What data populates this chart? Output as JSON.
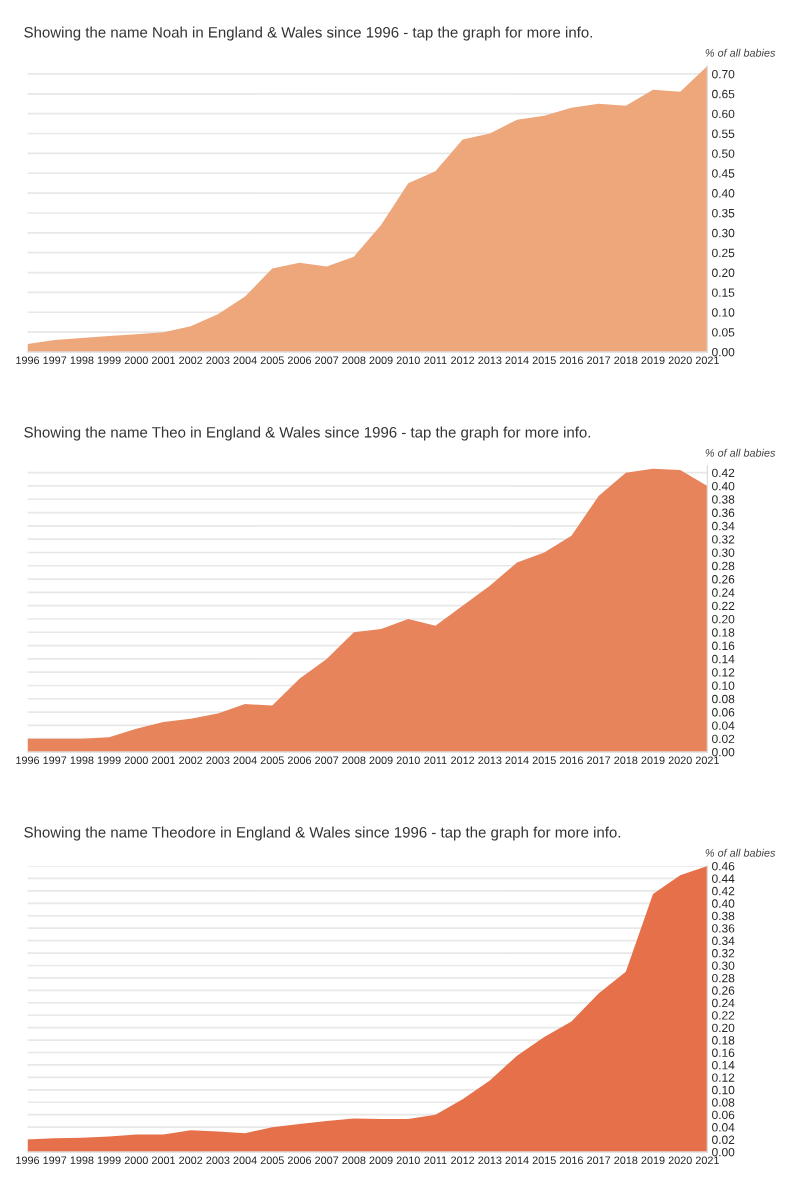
{
  "chart_data": [
    {
      "type": "area",
      "title": "Showing the name Noah in England & Wales since 1996 - tap the graph for more info.",
      "ylabel": "% of all babies",
      "categories": [
        "1996",
        "1997",
        "1998",
        "1999",
        "2000",
        "2001",
        "2002",
        "2003",
        "2004",
        "2005",
        "2006",
        "2007",
        "2008",
        "2009",
        "2010",
        "2011",
        "2012",
        "2013",
        "2014",
        "2015",
        "2016",
        "2017",
        "2018",
        "2019",
        "2020",
        "2021"
      ],
      "series": [
        {
          "color": "#eda77a",
          "values": [
            0.02,
            0.03,
            0.035,
            0.04,
            0.045,
            0.05,
            0.065,
            0.095,
            0.14,
            0.21,
            0.225,
            0.215,
            0.24,
            0.32,
            0.425,
            0.455,
            0.535,
            0.55,
            0.585,
            0.595,
            0.615,
            0.625,
            0.62,
            0.66,
            0.655,
            0.72
          ]
        }
      ],
      "ylim": [
        0,
        0.72
      ],
      "yticks": [
        {
          "value": 0,
          "label": "0.00"
        },
        {
          "value": 0.05,
          "label": "0.05"
        },
        {
          "value": 0.1,
          "label": "0.10"
        },
        {
          "value": 0.15,
          "label": "0.15"
        },
        {
          "value": 0.2,
          "label": "0.20"
        },
        {
          "value": 0.25,
          "label": "0.25"
        },
        {
          "value": 0.3,
          "label": "0.30"
        },
        {
          "value": 0.35,
          "label": "0.35"
        },
        {
          "value": 0.4,
          "label": "0.40"
        },
        {
          "value": 0.45,
          "label": "0.45"
        },
        {
          "value": 0.5,
          "label": "0.50"
        },
        {
          "value": 0.55,
          "label": "0.55"
        },
        {
          "value": 0.6,
          "label": "0.60"
        },
        {
          "value": 0.65,
          "label": "0.65"
        },
        {
          "value": 0.7,
          "label": "0.70"
        }
      ],
      "grid": "y"
    },
    {
      "type": "area",
      "title": "Showing the name Theo in England & Wales since 1996 - tap the graph for more info.",
      "ylabel": "% of all babies",
      "categories": [
        "1996",
        "1997",
        "1998",
        "1999",
        "2000",
        "2001",
        "2002",
        "2003",
        "2004",
        "2005",
        "2006",
        "2007",
        "2008",
        "2009",
        "2010",
        "2011",
        "2012",
        "2013",
        "2014",
        "2015",
        "2016",
        "2017",
        "2018",
        "2019",
        "2020",
        "2021"
      ],
      "series": [
        {
          "color": "#e8845c",
          "values": [
            0.02,
            0.02,
            0.02,
            0.022,
            0.035,
            0.045,
            0.05,
            0.058,
            0.072,
            0.07,
            0.11,
            0.14,
            0.18,
            0.185,
            0.2,
            0.19,
            0.22,
            0.25,
            0.285,
            0.3,
            0.325,
            0.385,
            0.42,
            0.426,
            0.424,
            0.4
          ]
        }
      ],
      "ylim": [
        0,
        0.43
      ],
      "yticks": [
        {
          "value": 0,
          "label": "0.00"
        },
        {
          "value": 0.02,
          "label": "0.02"
        },
        {
          "value": 0.04,
          "label": "0.04"
        },
        {
          "value": 0.06,
          "label": "0.06"
        },
        {
          "value": 0.08,
          "label": "0.08"
        },
        {
          "value": 0.1,
          "label": "0.10"
        },
        {
          "value": 0.12,
          "label": "0.12"
        },
        {
          "value": 0.14,
          "label": "0.14"
        },
        {
          "value": 0.16,
          "label": "0.16"
        },
        {
          "value": 0.18,
          "label": "0.18"
        },
        {
          "value": 0.2,
          "label": "0.20"
        },
        {
          "value": 0.22,
          "label": "0.22"
        },
        {
          "value": 0.24,
          "label": "0.24"
        },
        {
          "value": 0.26,
          "label": "0.26"
        },
        {
          "value": 0.28,
          "label": "0.28"
        },
        {
          "value": 0.3,
          "label": "0.30"
        },
        {
          "value": 0.32,
          "label": "0.32"
        },
        {
          "value": 0.34,
          "label": "0.34"
        },
        {
          "value": 0.36,
          "label": "0.36"
        },
        {
          "value": 0.38,
          "label": "0.38"
        },
        {
          "value": 0.4,
          "label": "0.40"
        },
        {
          "value": 0.42,
          "label": "0.42"
        }
      ],
      "grid": "y"
    },
    {
      "type": "area",
      "title": "Showing the name Theodore in England & Wales since 1996 - tap the graph for more info.",
      "ylabel": "% of all babies",
      "categories": [
        "1996",
        "1997",
        "1998",
        "1999",
        "2000",
        "2001",
        "2002",
        "2003",
        "2004",
        "2005",
        "2006",
        "2007",
        "2008",
        "2009",
        "2010",
        "2011",
        "2012",
        "2013",
        "2014",
        "2015",
        "2016",
        "2017",
        "2018",
        "2019",
        "2020",
        "2021"
      ],
      "series": [
        {
          "color": "#e6704a",
          "values": [
            0.02,
            0.022,
            0.023,
            0.025,
            0.028,
            0.028,
            0.035,
            0.033,
            0.03,
            0.04,
            0.045,
            0.05,
            0.054,
            0.053,
            0.053,
            0.06,
            0.085,
            0.115,
            0.155,
            0.185,
            0.21,
            0.255,
            0.29,
            0.415,
            0.445,
            0.46
          ]
        }
      ],
      "ylim": [
        0,
        0.46
      ],
      "yticks": [
        {
          "value": 0,
          "label": "0.00"
        },
        {
          "value": 0.02,
          "label": "0.02"
        },
        {
          "value": 0.04,
          "label": "0.04"
        },
        {
          "value": 0.06,
          "label": "0.06"
        },
        {
          "value": 0.08,
          "label": "0.08"
        },
        {
          "value": 0.1,
          "label": "0.10"
        },
        {
          "value": 0.12,
          "label": "0.12"
        },
        {
          "value": 0.14,
          "label": "0.14"
        },
        {
          "value": 0.16,
          "label": "0.16"
        },
        {
          "value": 0.18,
          "label": "0.18"
        },
        {
          "value": 0.2,
          "label": "0.20"
        },
        {
          "value": 0.22,
          "label": "0.22"
        },
        {
          "value": 0.24,
          "label": "0.24"
        },
        {
          "value": 0.26,
          "label": "0.26"
        },
        {
          "value": 0.28,
          "label": "0.28"
        },
        {
          "value": 0.3,
          "label": "0.30"
        },
        {
          "value": 0.32,
          "label": "0.32"
        },
        {
          "value": 0.34,
          "label": "0.34"
        },
        {
          "value": 0.36,
          "label": "0.36"
        },
        {
          "value": 0.38,
          "label": "0.38"
        },
        {
          "value": 0.4,
          "label": "0.40"
        },
        {
          "value": 0.42,
          "label": "0.42"
        },
        {
          "value": 0.44,
          "label": "0.44"
        },
        {
          "value": 0.46,
          "label": "0.46"
        }
      ],
      "grid": "y"
    }
  ]
}
